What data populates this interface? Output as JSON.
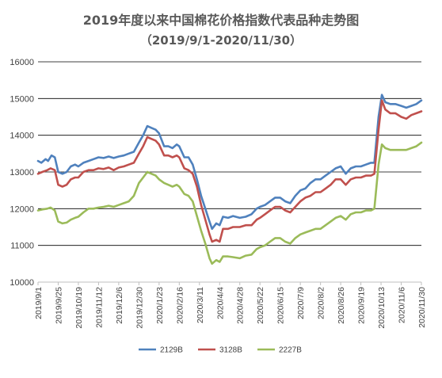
{
  "chart_data": {
    "type": "line",
    "title": "2019年度以来中国棉花价格指数代表品种走势图",
    "subtitle": "（2019/9/1-2020/11/30）",
    "xlabel": "",
    "ylabel": "",
    "ylim": [
      10000,
      16000
    ],
    "y_ticks": [
      "10000",
      "11000",
      "12000",
      "13000",
      "14000",
      "15000",
      "16000"
    ],
    "x_start": "2019-09-01",
    "x_end": "2020-11-30",
    "x_ticks": [
      "2019/9/1",
      "2019/9/25",
      "2019/10/19",
      "2019/11/12",
      "2019/12/6",
      "2019/12/30",
      "2020/1/23",
      "2020/2/16",
      "2020/3/11",
      "2020/4/4",
      "2020/4/28",
      "2020/5/22",
      "2020/6/15",
      "2020/7/9",
      "2020/8/2",
      "2020/8/26",
      "2020/9/19",
      "2020/10/13",
      "2020/11/6",
      "2020/11/30"
    ],
    "grid": true,
    "legend_position": "bottom",
    "series": [
      {
        "name": "2129B",
        "color": "#4F81BD",
        "points": [
          [
            "2019-09-01",
            13300
          ],
          [
            "2019-09-05",
            13250
          ],
          [
            "2019-09-10",
            13350
          ],
          [
            "2019-09-13",
            13300
          ],
          [
            "2019-09-17",
            13450
          ],
          [
            "2019-09-21",
            13400
          ],
          [
            "2019-09-25",
            13000
          ],
          [
            "2019-09-30",
            12950
          ],
          [
            "2019-10-05",
            13000
          ],
          [
            "2019-10-10",
            13150
          ],
          [
            "2019-10-15",
            13200
          ],
          [
            "2019-10-19",
            13150
          ],
          [
            "2019-10-25",
            13250
          ],
          [
            "2019-10-31",
            13300
          ],
          [
            "2019-11-06",
            13350
          ],
          [
            "2019-11-12",
            13400
          ],
          [
            "2019-11-18",
            13380
          ],
          [
            "2019-11-24",
            13420
          ],
          [
            "2019-11-30",
            13380
          ],
          [
            "2019-12-06",
            13420
          ],
          [
            "2019-12-12",
            13450
          ],
          [
            "2019-12-18",
            13500
          ],
          [
            "2019-12-24",
            13550
          ],
          [
            "2019-12-30",
            13800
          ],
          [
            "2020-01-04",
            14000
          ],
          [
            "2020-01-09",
            14250
          ],
          [
            "2020-01-14",
            14200
          ],
          [
            "2020-01-19",
            14150
          ],
          [
            "2020-01-23",
            14050
          ],
          [
            "2020-01-29",
            13700
          ],
          [
            "2020-02-03",
            13700
          ],
          [
            "2020-02-08",
            13650
          ],
          [
            "2020-02-13",
            13750
          ],
          [
            "2020-02-16",
            13700
          ],
          [
            "2020-02-22",
            13400
          ],
          [
            "2020-02-27",
            13400
          ],
          [
            "2020-03-03",
            13200
          ],
          [
            "2020-03-08",
            12800
          ],
          [
            "2020-03-13",
            12350
          ],
          [
            "2020-03-18",
            12000
          ],
          [
            "2020-03-23",
            11650
          ],
          [
            "2020-03-26",
            11450
          ],
          [
            "2020-03-31",
            11600
          ],
          [
            "2020-04-04",
            11550
          ],
          [
            "2020-04-08",
            11780
          ],
          [
            "2020-04-14",
            11750
          ],
          [
            "2020-04-20",
            11800
          ],
          [
            "2020-04-28",
            11750
          ],
          [
            "2020-05-05",
            11780
          ],
          [
            "2020-05-12",
            11850
          ],
          [
            "2020-05-18",
            12000
          ],
          [
            "2020-05-22",
            12050
          ],
          [
            "2020-05-28",
            12100
          ],
          [
            "2020-06-03",
            12200
          ],
          [
            "2020-06-09",
            12300
          ],
          [
            "2020-06-15",
            12300
          ],
          [
            "2020-06-21",
            12200
          ],
          [
            "2020-06-27",
            12150
          ],
          [
            "2020-07-03",
            12350
          ],
          [
            "2020-07-09",
            12500
          ],
          [
            "2020-07-15",
            12550
          ],
          [
            "2020-07-21",
            12700
          ],
          [
            "2020-07-27",
            12800
          ],
          [
            "2020-08-02",
            12800
          ],
          [
            "2020-08-08",
            12900
          ],
          [
            "2020-08-14",
            13000
          ],
          [
            "2020-08-20",
            13100
          ],
          [
            "2020-08-26",
            13150
          ],
          [
            "2020-09-01",
            12950
          ],
          [
            "2020-09-07",
            13100
          ],
          [
            "2020-09-13",
            13150
          ],
          [
            "2020-09-19",
            13150
          ],
          [
            "2020-09-25",
            13200
          ],
          [
            "2020-10-01",
            13250
          ],
          [
            "2020-10-05",
            13250
          ],
          [
            "2020-10-10",
            14500
          ],
          [
            "2020-10-14",
            15100
          ],
          [
            "2020-10-18",
            14900
          ],
          [
            "2020-10-24",
            14850
          ],
          [
            "2020-10-30",
            14850
          ],
          [
            "2020-11-06",
            14800
          ],
          [
            "2020-11-12",
            14750
          ],
          [
            "2020-11-18",
            14800
          ],
          [
            "2020-11-24",
            14850
          ],
          [
            "2020-11-30",
            14950
          ]
        ]
      },
      {
        "name": "3128B",
        "color": "#C0504D",
        "points": [
          [
            "2019-09-01",
            12950
          ],
          [
            "2019-09-06",
            13000
          ],
          [
            "2019-09-12",
            13050
          ],
          [
            "2019-09-16",
            13100
          ],
          [
            "2019-09-21",
            13050
          ],
          [
            "2019-09-25",
            12650
          ],
          [
            "2019-09-30",
            12600
          ],
          [
            "2019-10-05",
            12650
          ],
          [
            "2019-10-10",
            12800
          ],
          [
            "2019-10-15",
            12850
          ],
          [
            "2019-10-19",
            12850
          ],
          [
            "2019-10-25",
            13000
          ],
          [
            "2019-10-31",
            13050
          ],
          [
            "2019-11-06",
            13050
          ],
          [
            "2019-11-12",
            13100
          ],
          [
            "2019-11-18",
            13080
          ],
          [
            "2019-11-24",
            13120
          ],
          [
            "2019-11-30",
            13050
          ],
          [
            "2019-12-06",
            13120
          ],
          [
            "2019-12-12",
            13150
          ],
          [
            "2019-12-18",
            13200
          ],
          [
            "2019-12-24",
            13250
          ],
          [
            "2019-12-30",
            13500
          ],
          [
            "2020-01-04",
            13700
          ],
          [
            "2020-01-09",
            13950
          ],
          [
            "2020-01-14",
            13900
          ],
          [
            "2020-01-19",
            13850
          ],
          [
            "2020-01-23",
            13750
          ],
          [
            "2020-01-29",
            13450
          ],
          [
            "2020-02-03",
            13450
          ],
          [
            "2020-02-08",
            13400
          ],
          [
            "2020-02-13",
            13450
          ],
          [
            "2020-02-16",
            13400
          ],
          [
            "2020-02-22",
            13100
          ],
          [
            "2020-02-27",
            13050
          ],
          [
            "2020-03-03",
            12950
          ],
          [
            "2020-03-08",
            12600
          ],
          [
            "2020-03-13",
            12100
          ],
          [
            "2020-03-18",
            11700
          ],
          [
            "2020-03-23",
            11300
          ],
          [
            "2020-03-26",
            11100
          ],
          [
            "2020-03-31",
            11150
          ],
          [
            "2020-04-04",
            11100
          ],
          [
            "2020-04-08",
            11450
          ],
          [
            "2020-04-14",
            11450
          ],
          [
            "2020-04-20",
            11500
          ],
          [
            "2020-04-28",
            11500
          ],
          [
            "2020-05-05",
            11550
          ],
          [
            "2020-05-12",
            11550
          ],
          [
            "2020-05-18",
            11700
          ],
          [
            "2020-05-22",
            11750
          ],
          [
            "2020-05-28",
            11850
          ],
          [
            "2020-06-03",
            11950
          ],
          [
            "2020-06-09",
            12050
          ],
          [
            "2020-06-15",
            12050
          ],
          [
            "2020-06-21",
            11950
          ],
          [
            "2020-06-27",
            11900
          ],
          [
            "2020-07-03",
            12050
          ],
          [
            "2020-07-09",
            12200
          ],
          [
            "2020-07-15",
            12300
          ],
          [
            "2020-07-21",
            12350
          ],
          [
            "2020-07-27",
            12450
          ],
          [
            "2020-08-02",
            12450
          ],
          [
            "2020-08-08",
            12550
          ],
          [
            "2020-08-14",
            12650
          ],
          [
            "2020-08-20",
            12800
          ],
          [
            "2020-08-26",
            12800
          ],
          [
            "2020-09-01",
            12650
          ],
          [
            "2020-09-07",
            12800
          ],
          [
            "2020-09-13",
            12850
          ],
          [
            "2020-09-19",
            12850
          ],
          [
            "2020-09-25",
            12900
          ],
          [
            "2020-10-01",
            12900
          ],
          [
            "2020-10-05",
            12950
          ],
          [
            "2020-10-10",
            14150
          ],
          [
            "2020-10-14",
            14950
          ],
          [
            "2020-10-18",
            14700
          ],
          [
            "2020-10-24",
            14600
          ],
          [
            "2020-10-30",
            14600
          ],
          [
            "2020-11-06",
            14500
          ],
          [
            "2020-11-12",
            14450
          ],
          [
            "2020-11-18",
            14550
          ],
          [
            "2020-11-24",
            14600
          ],
          [
            "2020-11-30",
            14650
          ]
        ]
      },
      {
        "name": "2227B",
        "color": "#9BBB59",
        "points": [
          [
            "2019-09-01",
            11950
          ],
          [
            "2019-09-06",
            11980
          ],
          [
            "2019-09-12",
            12000
          ],
          [
            "2019-09-16",
            12030
          ],
          [
            "2019-09-21",
            11950
          ],
          [
            "2019-09-25",
            11650
          ],
          [
            "2019-09-30",
            11600
          ],
          [
            "2019-10-05",
            11620
          ],
          [
            "2019-10-10",
            11700
          ],
          [
            "2019-10-15",
            11750
          ],
          [
            "2019-10-19",
            11780
          ],
          [
            "2019-10-25",
            11900
          ],
          [
            "2019-10-31",
            12000
          ],
          [
            "2019-11-06",
            12000
          ],
          [
            "2019-11-12",
            12030
          ],
          [
            "2019-11-18",
            12050
          ],
          [
            "2019-11-24",
            12080
          ],
          [
            "2019-11-30",
            12050
          ],
          [
            "2019-12-06",
            12100
          ],
          [
            "2019-12-12",
            12150
          ],
          [
            "2019-12-18",
            12200
          ],
          [
            "2019-12-24",
            12350
          ],
          [
            "2019-12-30",
            12700
          ],
          [
            "2020-01-04",
            12850
          ],
          [
            "2020-01-09",
            13000
          ],
          [
            "2020-01-14",
            12950
          ],
          [
            "2020-01-19",
            12900
          ],
          [
            "2020-01-23",
            12800
          ],
          [
            "2020-01-29",
            12700
          ],
          [
            "2020-02-03",
            12650
          ],
          [
            "2020-02-08",
            12600
          ],
          [
            "2020-02-13",
            12650
          ],
          [
            "2020-02-16",
            12600
          ],
          [
            "2020-02-22",
            12400
          ],
          [
            "2020-02-27",
            12350
          ],
          [
            "2020-03-03",
            12200
          ],
          [
            "2020-03-08",
            11800
          ],
          [
            "2020-03-13",
            11400
          ],
          [
            "2020-03-18",
            11050
          ],
          [
            "2020-03-23",
            10650
          ],
          [
            "2020-03-26",
            10500
          ],
          [
            "2020-03-31",
            10600
          ],
          [
            "2020-04-04",
            10550
          ],
          [
            "2020-04-08",
            10700
          ],
          [
            "2020-04-14",
            10700
          ],
          [
            "2020-04-20",
            10680
          ],
          [
            "2020-04-28",
            10650
          ],
          [
            "2020-05-05",
            10720
          ],
          [
            "2020-05-12",
            10750
          ],
          [
            "2020-05-18",
            10900
          ],
          [
            "2020-05-22",
            10950
          ],
          [
            "2020-05-28",
            11000
          ],
          [
            "2020-06-03",
            11100
          ],
          [
            "2020-06-09",
            11200
          ],
          [
            "2020-06-15",
            11200
          ],
          [
            "2020-06-21",
            11100
          ],
          [
            "2020-06-27",
            11050
          ],
          [
            "2020-07-03",
            11200
          ],
          [
            "2020-07-09",
            11300
          ],
          [
            "2020-07-15",
            11350
          ],
          [
            "2020-07-21",
            11400
          ],
          [
            "2020-07-27",
            11450
          ],
          [
            "2020-08-02",
            11450
          ],
          [
            "2020-08-08",
            11550
          ],
          [
            "2020-08-14",
            11650
          ],
          [
            "2020-08-20",
            11750
          ],
          [
            "2020-08-26",
            11800
          ],
          [
            "2020-09-01",
            11700
          ],
          [
            "2020-09-07",
            11850
          ],
          [
            "2020-09-13",
            11900
          ],
          [
            "2020-09-19",
            11900
          ],
          [
            "2020-09-25",
            11950
          ],
          [
            "2020-10-01",
            11950
          ],
          [
            "2020-10-05",
            12000
          ],
          [
            "2020-10-10",
            13200
          ],
          [
            "2020-10-14",
            13750
          ],
          [
            "2020-10-18",
            13650
          ],
          [
            "2020-10-24",
            13600
          ],
          [
            "2020-10-30",
            13600
          ],
          [
            "2020-11-06",
            13600
          ],
          [
            "2020-11-12",
            13600
          ],
          [
            "2020-11-18",
            13650
          ],
          [
            "2020-11-24",
            13700
          ],
          [
            "2020-11-30",
            13800
          ]
        ]
      }
    ]
  }
}
